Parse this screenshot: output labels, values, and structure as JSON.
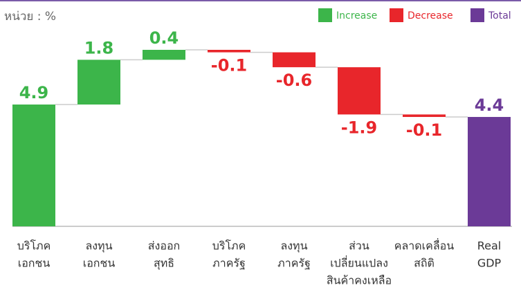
{
  "chart_data": {
    "type": "waterfall",
    "unit_label": "หน่วย : %",
    "categories": [
      [
        "บริโภค",
        "เอกชน"
      ],
      [
        "ลงทุน",
        "เอกชน"
      ],
      [
        "ส่งออก",
        "สุทธิ"
      ],
      [
        "บริโภค",
        "ภาครัฐ"
      ],
      [
        "ลงทุน",
        "ภาครัฐ"
      ],
      [
        "ส่วน",
        "เปลี่ยนแปลง",
        "สินค้าคงเหลือ"
      ],
      [
        "คลาดเคลื่อน",
        "สถิติ"
      ],
      [
        "Real",
        "GDP"
      ]
    ],
    "values": [
      4.9,
      1.8,
      0.4,
      -0.1,
      -0.6,
      -1.9,
      -0.1,
      4.4
    ],
    "totals": [
      7
    ],
    "legend": [
      {
        "name": "Increase",
        "color": "#3cb54a"
      },
      {
        "name": "Decrease",
        "color": "#e8262b"
      },
      {
        "name": "Total",
        "color": "#6b3a97"
      }
    ]
  }
}
